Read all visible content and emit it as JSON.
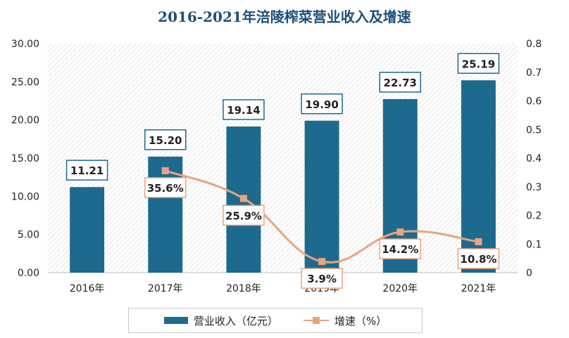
{
  "colors": {
    "bar": "#1d6a8f",
    "line": "#e8a47f",
    "marker": "#e8a47f",
    "bar_label_border": "#1d6a8f",
    "line_label_border": "#e8a47f",
    "axis_text": "#222222",
    "hatch": "#d9d9d9"
  },
  "chart_data": {
    "type": "bar",
    "title": "2016-2021年涪陵榨菜营业收入及增速",
    "categories": [
      "2016年",
      "2017年",
      "2018年",
      "2019年",
      "2020年",
      "2021年"
    ],
    "series": [
      {
        "name": "营业收入（亿元）",
        "type": "bar",
        "axis": "left",
        "values": [
          11.21,
          15.2,
          19.14,
          19.9,
          22.73,
          25.19
        ],
        "labels": [
          "11.21",
          "15.20",
          "19.14",
          "19.90",
          "22.73",
          "25.19"
        ]
      },
      {
        "name": "增速（%）",
        "type": "line",
        "axis": "right",
        "values": [
          null,
          0.356,
          0.259,
          0.039,
          0.142,
          0.108
        ],
        "labels": [
          null,
          "35.6%",
          "25.9%",
          "3.9%",
          "14.2%",
          "10.8%"
        ]
      }
    ],
    "y_left": {
      "ylim": [
        0,
        30
      ],
      "ticks": [
        "0.00",
        "5.00",
        "10.00",
        "15.00",
        "20.00",
        "25.00",
        "30.00"
      ]
    },
    "y_right": {
      "ylim": [
        0,
        0.8
      ],
      "ticks": [
        "0",
        "0.1",
        "0.2",
        "0.3",
        "0.4",
        "0.5",
        "0.6",
        "0.7",
        "0.8"
      ]
    },
    "grid": false,
    "background": "diagonal-hatch",
    "legend": {
      "position": "bottom"
    }
  }
}
